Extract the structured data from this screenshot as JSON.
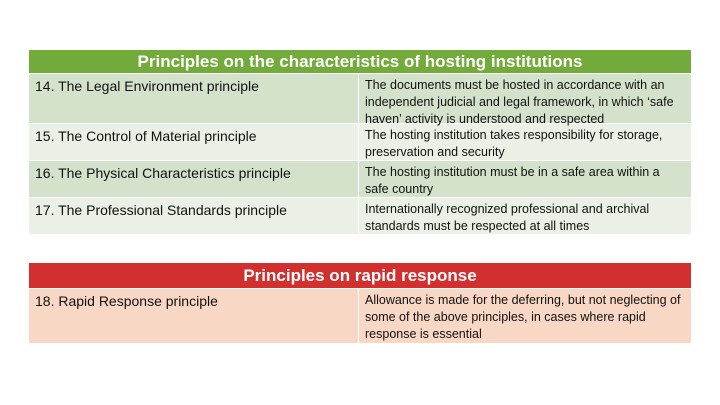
{
  "hosting_table": {
    "title": "Principles on the characteristics of hosting institutions",
    "rows": [
      {
        "principle": "14. The Legal Environment principle",
        "description": "The documents must be hosted in accordance with an independent judicial and legal framework, in which ‘safe haven’ activity is understood and respected"
      },
      {
        "principle": "15. The Control of Material principle",
        "description": "The hosting institution takes responsibility for storage, preservation and security"
      },
      {
        "principle": "16. The Physical Characteristics principle",
        "description": "The hosting institution must be in a safe area within a safe country"
      },
      {
        "principle": "17. The Professional Standards principle",
        "description": "Internationally recognized professional and archival standards must be respected at all times"
      }
    ],
    "colors": {
      "header": "#72ab3a",
      "row_dark": "#d5e2cb",
      "row_light": "#eaf0e6"
    }
  },
  "rapid_table": {
    "title": "Principles on rapid response",
    "rows": [
      {
        "principle": "18. Rapid Response principle",
        "description": "Allowance is made for the deferring, but not neglecting of some of the above principles, in cases where rapid response is essential"
      }
    ],
    "colors": {
      "header": "#d22f2f",
      "row": "#f8d7c4"
    }
  }
}
